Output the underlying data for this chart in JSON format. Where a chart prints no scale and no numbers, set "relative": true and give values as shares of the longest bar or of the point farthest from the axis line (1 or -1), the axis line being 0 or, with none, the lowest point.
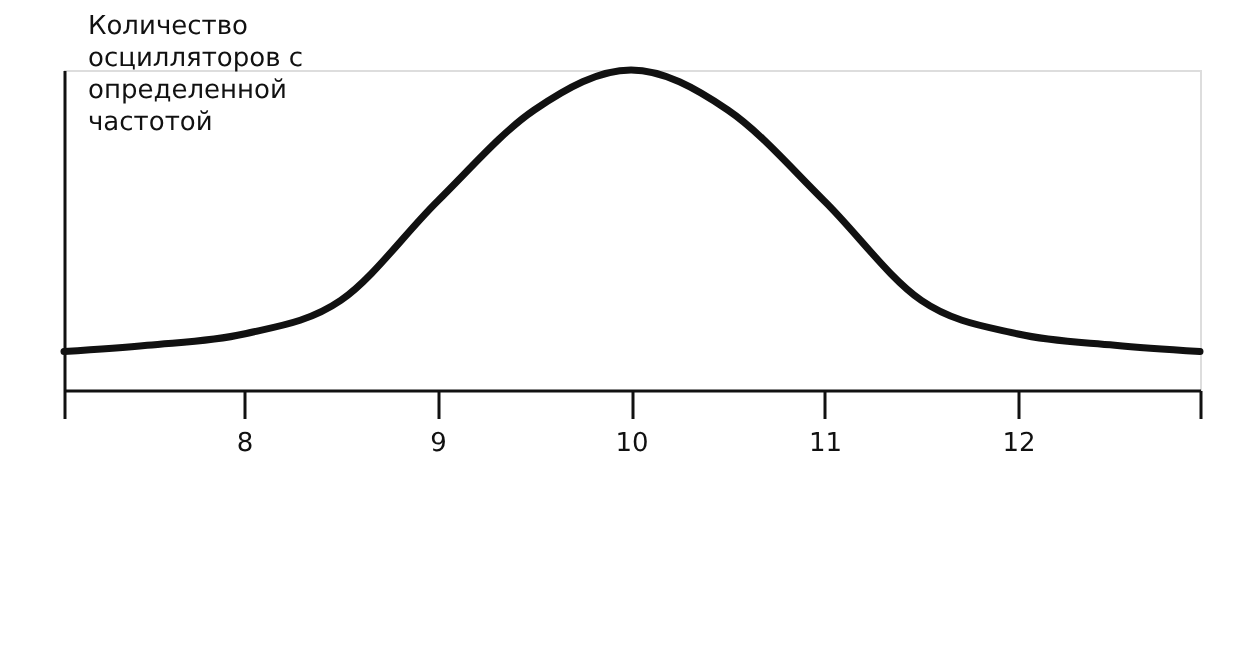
{
  "chart_data": {
    "type": "line",
    "relative": true,
    "ylabel": "Количество осцилляторов с определенной частотой",
    "x": [
      7.07,
      7.5,
      8,
      8.5,
      9,
      9.5,
      10,
      10.5,
      11,
      11.5,
      12,
      12.5,
      12.94
    ],
    "series": [
      {
        "color": "#111111",
        "values": [
          0.12,
          0.14,
          0.175,
          0.28,
          0.59,
          0.875,
          1,
          0.875,
          0.59,
          0.28,
          0.175,
          0.14,
          0.12
        ]
      }
    ],
    "xlim": [
      7.07,
      12.94
    ],
    "xticks": [
      {
        "value": 7.07,
        "label": null
      },
      8,
      9,
      10,
      11,
      12,
      {
        "value": 12.94,
        "label": null
      }
    ],
    "grid": false,
    "legend": false,
    "marker": "none",
    "line_style": "solid"
  }
}
